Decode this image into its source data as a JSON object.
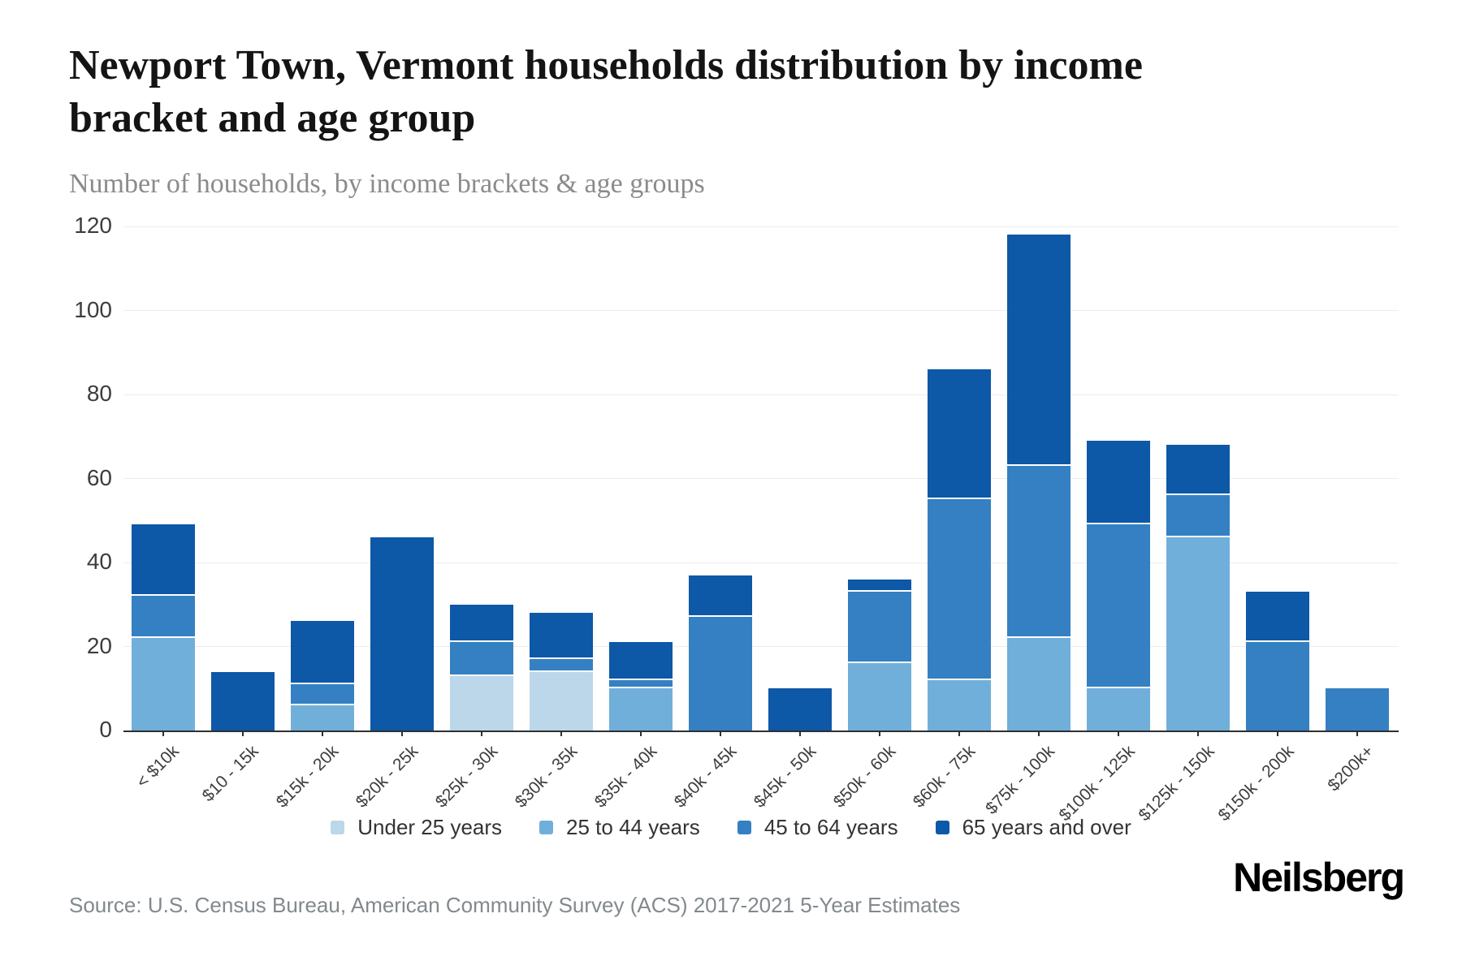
{
  "header": {
    "title": "Newport Town, Vermont households distribution by income bracket and age group",
    "subtitle": "Number of households, by income brackets & age groups"
  },
  "footer": {
    "source": "Source: U.S. Census Bureau, American Community Survey (ACS) 2017-2021 5-Year Estimates",
    "logo_text": "Neilsberg"
  },
  "colors": {
    "under_25": "#bcd6ea",
    "age_25_44": "#71afdb",
    "age_45_64": "#3480c2",
    "age_65_over": "#0d58a7",
    "gridline": "#ededed",
    "axis": "#2f2f2f",
    "tick_label": "#3d3d3d"
  },
  "chart_data": {
    "type": "bar",
    "stacked": true,
    "title": "Newport Town, Vermont households distribution by income bracket and age group",
    "xlabel": "",
    "ylabel": "Number of households",
    "ylim": [
      0,
      120
    ],
    "ytick_step": 20,
    "grid": true,
    "legend_position": "bottom",
    "categories": [
      "< $10k",
      "$10 - 15k",
      "$15k - 20k",
      "$20k - 25k",
      "$25k - 30k",
      "$30k - 35k",
      "$35k - 40k",
      "$40k - 45k",
      "$45k - 50k",
      "$50k - 60k",
      "$60k - 75k",
      "$75k - 100k",
      "$100k - 125k",
      "$125k - 150k",
      "$150k - 200k",
      "$200k+"
    ],
    "series": [
      {
        "name": "Under 25 years",
        "color": "#bcd6ea",
        "values": [
          0,
          0,
          0,
          0,
          13,
          14,
          0,
          0,
          0,
          0,
          0,
          0,
          0,
          0,
          0,
          0
        ]
      },
      {
        "name": "25 to 44 years",
        "color": "#71afdb",
        "values": [
          22,
          0,
          6,
          0,
          0,
          0,
          10,
          0,
          0,
          16,
          12,
          22,
          10,
          46,
          0,
          0
        ]
      },
      {
        "name": "45 to 64 years",
        "color": "#3480c2",
        "values": [
          10,
          0,
          5,
          0,
          8,
          3,
          2,
          27,
          0,
          17,
          43,
          41,
          39,
          10,
          21,
          10
        ]
      },
      {
        "name": "65 years and over",
        "color": "#0d58a7",
        "values": [
          17,
          14,
          15,
          46,
          9,
          11,
          9,
          10,
          10,
          3,
          31,
          55,
          20,
          12,
          12,
          0
        ]
      }
    ],
    "totals": [
      49,
      14,
      26,
      46,
      30,
      28,
      21,
      37,
      10,
      36,
      86,
      118,
      69,
      68,
      33,
      10
    ]
  }
}
